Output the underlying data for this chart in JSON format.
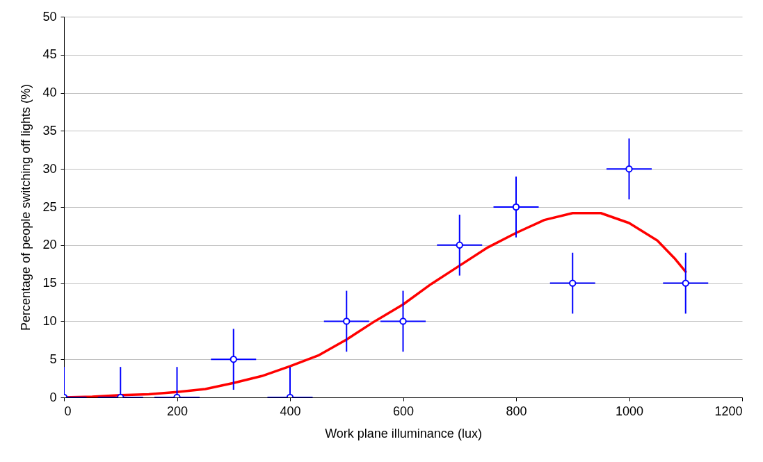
{
  "chart_data": {
    "type": "scatter",
    "xlabel": "Work plane illuminance (lux)",
    "ylabel": "Percentage of people switching off lights (%)",
    "xlim": [
      0,
      1200
    ],
    "xticks": [
      0,
      200,
      400,
      600,
      800,
      1000,
      1200
    ],
    "ylim": [
      0,
      50
    ],
    "yticks": [
      0,
      5,
      10,
      15,
      20,
      25,
      30,
      35,
      40,
      45,
      50
    ],
    "grid": "y",
    "series": [
      {
        "color": "#0000ff",
        "marker": "circle",
        "x": [
          0,
          100,
          200,
          300,
          400,
          500,
          600,
          700,
          800,
          900,
          1000,
          1100
        ],
        "values": [
          0,
          0,
          0,
          5,
          0,
          10,
          10,
          20,
          25,
          15,
          30,
          15
        ],
        "errors": [
          [
            0,
            4
          ],
          [
            0,
            4
          ],
          [
            0,
            4
          ],
          4,
          [
            0,
            4
          ],
          4,
          4,
          4,
          4,
          4,
          4,
          4
        ],
        "xerrors": [
          [
            0,
            40
          ],
          40,
          40,
          40,
          40,
          40,
          40,
          40,
          40,
          40,
          40,
          40
        ]
      },
      {
        "type": "line",
        "color": "#ff0000",
        "marker": "none",
        "line_style": "solid",
        "x": [
          0,
          50,
          100,
          150,
          200,
          250,
          300,
          350,
          400,
          450,
          500,
          550,
          600,
          650,
          700,
          750,
          800,
          850,
          900,
          950,
          1000,
          1050,
          1080,
          1100
        ],
        "values": [
          0,
          0.1,
          0.3,
          0.4,
          0.7,
          1.1,
          1.9,
          2.8,
          4.1,
          5.5,
          7.6,
          10.0,
          12.2,
          14.9,
          17.3,
          19.7,
          21.6,
          23.3,
          24.2,
          24.2,
          22.9,
          20.6,
          18.3,
          16.5
        ]
      }
    ]
  }
}
